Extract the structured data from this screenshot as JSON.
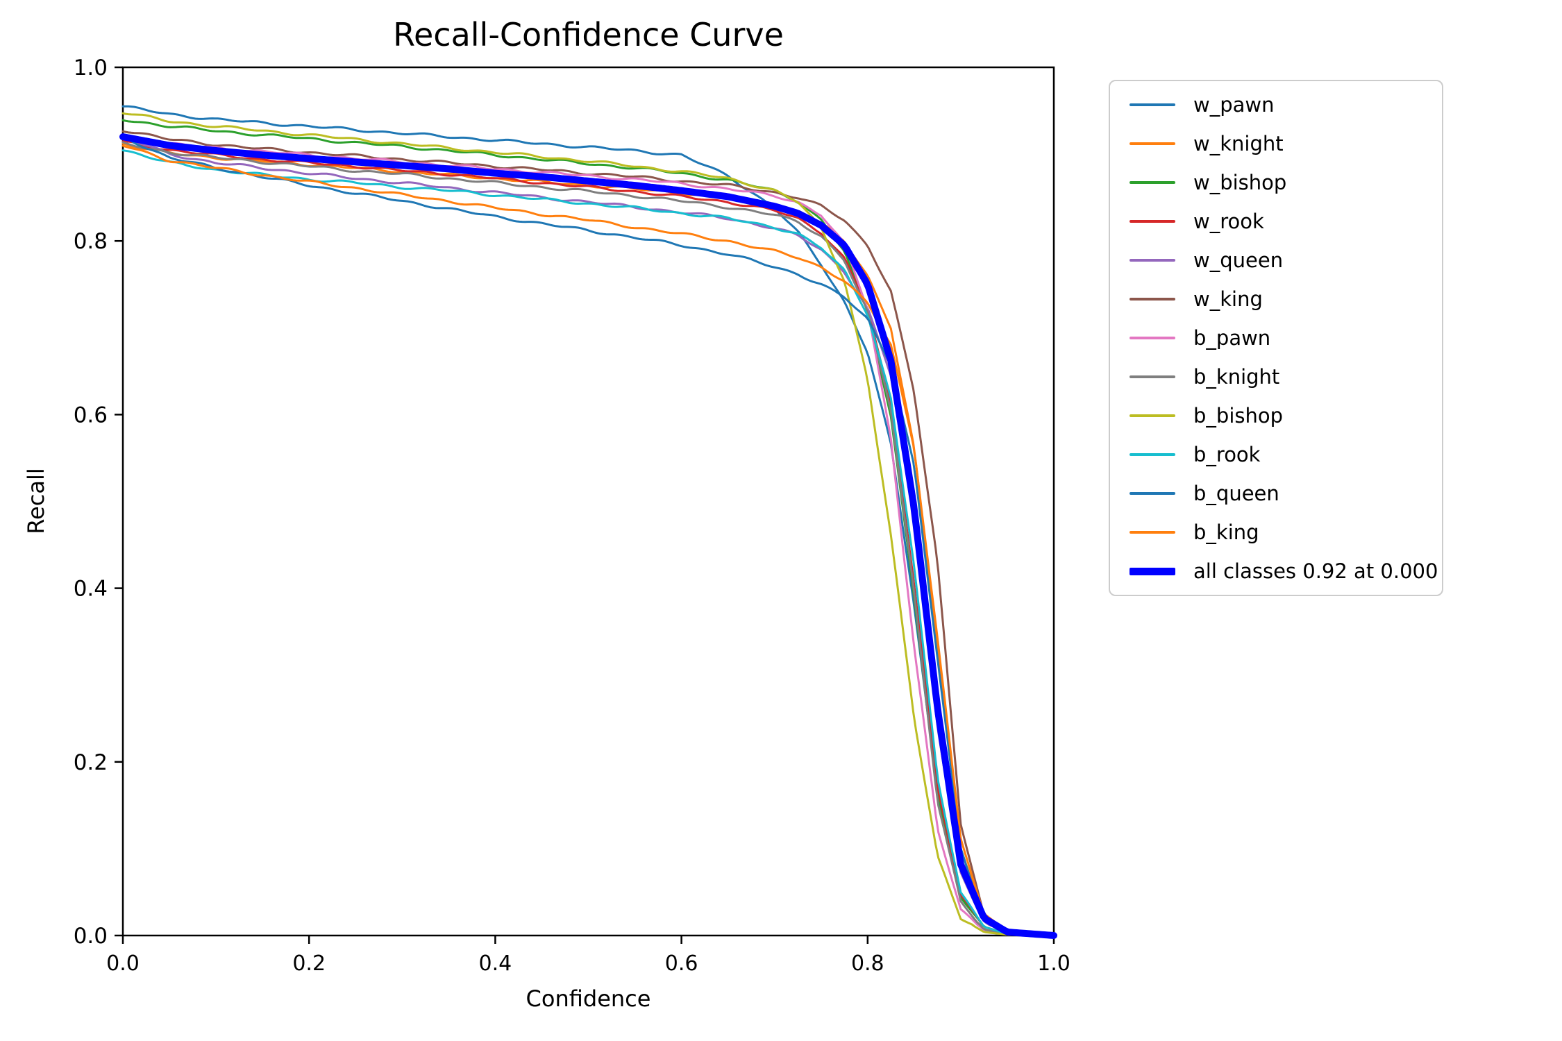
{
  "title": "Recall-Confidence Curve",
  "x_axis": {
    "label": "Confidence",
    "tick_labels": [
      "0.0",
      "0.2",
      "0.4",
      "0.6",
      "0.8",
      "1.0"
    ],
    "tick_values": [
      0.0,
      0.2,
      0.4,
      0.6,
      0.8,
      1.0
    ]
  },
  "y_axis": {
    "label": "Recall",
    "tick_labels": [
      "0.0",
      "0.2",
      "0.4",
      "0.6",
      "0.8",
      "1.0"
    ],
    "tick_values": [
      0.0,
      0.2,
      0.4,
      0.6,
      0.8,
      1.0
    ]
  },
  "chart_data": {
    "type": "line",
    "title": "Recall-Confidence Curve",
    "xlabel": "Confidence",
    "ylabel": "Recall",
    "xlim": [
      0.0,
      1.0
    ],
    "ylim": [
      0.0,
      1.0
    ],
    "grid": false,
    "legend_position": "outside-right",
    "x": [
      0.0,
      0.05,
      0.1,
      0.15,
      0.2,
      0.25,
      0.3,
      0.35,
      0.4,
      0.45,
      0.5,
      0.55,
      0.6,
      0.65,
      0.7,
      0.725,
      0.75,
      0.775,
      0.8,
      0.825,
      0.85,
      0.875,
      0.9,
      0.925,
      0.95,
      1.0
    ],
    "series": [
      {
        "name": "w_pawn",
        "color": "#1f77b4",
        "linewidth": 3,
        "values": [
          0.955,
          0.946,
          0.94,
          0.936,
          0.932,
          0.928,
          0.924,
          0.92,
          0.916,
          0.912,
          0.908,
          0.904,
          0.899,
          0.875,
          0.838,
          0.81,
          0.773,
          0.73,
          0.672,
          0.565,
          0.38,
          0.165,
          0.045,
          0.01,
          0.002,
          0.0
        ]
      },
      {
        "name": "w_knight",
        "color": "#ff7f0e",
        "linewidth": 3,
        "values": [
          0.912,
          0.901,
          0.896,
          0.892,
          0.888,
          0.884,
          0.88,
          0.876,
          0.872,
          0.868,
          0.864,
          0.86,
          0.855,
          0.849,
          0.84,
          0.833,
          0.82,
          0.8,
          0.76,
          0.7,
          0.56,
          0.33,
          0.1,
          0.025,
          0.005,
          0.0
        ]
      },
      {
        "name": "w_bishop",
        "color": "#2ca02c",
        "linewidth": 3,
        "values": [
          0.94,
          0.932,
          0.927,
          0.922,
          0.918,
          0.913,
          0.909,
          0.904,
          0.899,
          0.894,
          0.889,
          0.884,
          0.878,
          0.87,
          0.858,
          0.846,
          0.824,
          0.788,
          0.718,
          0.598,
          0.39,
          0.16,
          0.045,
          0.01,
          0.002,
          0.0
        ]
      },
      {
        "name": "w_rook",
        "color": "#d62728",
        "linewidth": 3,
        "values": [
          0.914,
          0.905,
          0.899,
          0.894,
          0.89,
          0.886,
          0.881,
          0.877,
          0.872,
          0.867,
          0.862,
          0.857,
          0.851,
          0.845,
          0.835,
          0.826,
          0.81,
          0.78,
          0.722,
          0.612,
          0.405,
          0.172,
          0.046,
          0.01,
          0.002,
          0.0
        ]
      },
      {
        "name": "w_queen",
        "color": "#9467bd",
        "linewidth": 3,
        "values": [
          0.92,
          0.9,
          0.89,
          0.884,
          0.878,
          0.872,
          0.867,
          0.861,
          0.856,
          0.85,
          0.845,
          0.839,
          0.833,
          0.826,
          0.815,
          0.806,
          0.79,
          0.765,
          0.722,
          0.645,
          0.475,
          0.242,
          0.072,
          0.015,
          0.003,
          0.0
        ]
      },
      {
        "name": "w_king",
        "color": "#8c564b",
        "linewidth": 3,
        "values": [
          0.928,
          0.917,
          0.911,
          0.906,
          0.902,
          0.898,
          0.894,
          0.89,
          0.886,
          0.882,
          0.878,
          0.874,
          0.869,
          0.864,
          0.856,
          0.85,
          0.84,
          0.824,
          0.795,
          0.742,
          0.625,
          0.43,
          0.13,
          0.022,
          0.003,
          0.0
        ]
      },
      {
        "name": "b_pawn",
        "color": "#e377c2",
        "linewidth": 3,
        "values": [
          0.922,
          0.912,
          0.907,
          0.903,
          0.899,
          0.895,
          0.891,
          0.887,
          0.883,
          0.879,
          0.875,
          0.871,
          0.866,
          0.86,
          0.852,
          0.845,
          0.83,
          0.796,
          0.722,
          0.572,
          0.332,
          0.122,
          0.03,
          0.006,
          0.001,
          0.0
        ]
      },
      {
        "name": "b_knight",
        "color": "#7f7f7f",
        "linewidth": 3,
        "values": [
          0.912,
          0.902,
          0.896,
          0.891,
          0.886,
          0.881,
          0.877,
          0.872,
          0.867,
          0.862,
          0.857,
          0.852,
          0.846,
          0.839,
          0.83,
          0.822,
          0.806,
          0.778,
          0.718,
          0.605,
          0.395,
          0.155,
          0.038,
          0.007,
          0.001,
          0.0
        ]
      },
      {
        "name": "b_bishop",
        "color": "#bcbd22",
        "linewidth": 3,
        "values": [
          0.948,
          0.938,
          0.932,
          0.927,
          0.922,
          0.917,
          0.912,
          0.907,
          0.902,
          0.897,
          0.892,
          0.886,
          0.88,
          0.872,
          0.858,
          0.845,
          0.815,
          0.755,
          0.64,
          0.46,
          0.25,
          0.092,
          0.02,
          0.004,
          0.001,
          0.0
        ]
      },
      {
        "name": "b_rook",
        "color": "#17becf",
        "linewidth": 3,
        "values": [
          0.905,
          0.89,
          0.882,
          0.876,
          0.871,
          0.867,
          0.862,
          0.858,
          0.853,
          0.848,
          0.843,
          0.838,
          0.832,
          0.826,
          0.816,
          0.808,
          0.792,
          0.766,
          0.716,
          0.618,
          0.425,
          0.182,
          0.05,
          0.01,
          0.002,
          0.0
        ]
      },
      {
        "name": "b_queen",
        "color": "#1f77b4",
        "linewidth": 3,
        "values": [
          0.92,
          0.896,
          0.884,
          0.874,
          0.864,
          0.855,
          0.846,
          0.837,
          0.828,
          0.82,
          0.812,
          0.804,
          0.795,
          0.785,
          0.77,
          0.762,
          0.75,
          0.735,
          0.71,
          0.658,
          0.54,
          0.32,
          0.1,
          0.02,
          0.003,
          0.0
        ]
      },
      {
        "name": "b_king",
        "color": "#ff7f0e",
        "linewidth": 3,
        "values": [
          0.91,
          0.893,
          0.884,
          0.876,
          0.868,
          0.861,
          0.853,
          0.846,
          0.838,
          0.831,
          0.824,
          0.816,
          0.808,
          0.8,
          0.788,
          0.781,
          0.77,
          0.754,
          0.728,
          0.68,
          0.562,
          0.342,
          0.112,
          0.022,
          0.004,
          0.0
        ]
      },
      {
        "name": "all classes 0.92 at 0.000",
        "color": "#0000ff",
        "linewidth": 10,
        "values": [
          0.92,
          0.91,
          0.904,
          0.899,
          0.895,
          0.891,
          0.887,
          0.883,
          0.878,
          0.874,
          0.869,
          0.864,
          0.858,
          0.851,
          0.84,
          0.832,
          0.818,
          0.795,
          0.75,
          0.662,
          0.492,
          0.262,
          0.082,
          0.02,
          0.004,
          0.0
        ]
      }
    ]
  }
}
